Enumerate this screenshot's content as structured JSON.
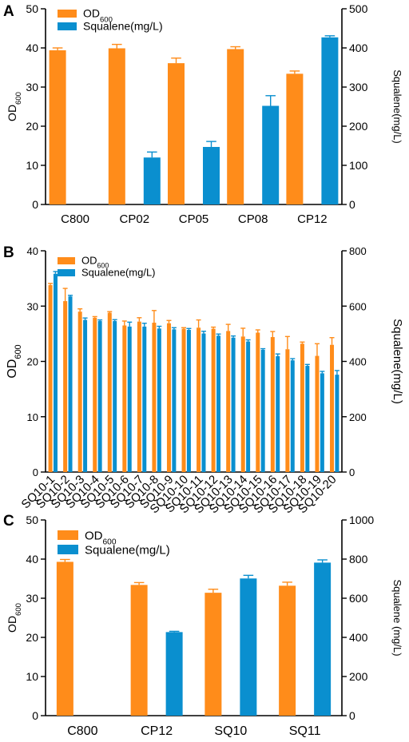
{
  "colors": {
    "od": "#FF8C1A",
    "squalene": "#0A8FCF",
    "axis": "#000000"
  },
  "chart_data": [
    {
      "panel_label": "A",
      "type": "bar",
      "categories": [
        "C800",
        "CP02",
        "CP05",
        "CP08",
        "CP12"
      ],
      "series": [
        {
          "name": "OD",
          "name_sub": "600",
          "axis": "left",
          "values": [
            39.4,
            39.9,
            36.1,
            39.7,
            33.4
          ],
          "errors": [
            0.6,
            1.0,
            1.3,
            0.6,
            0.7
          ]
        },
        {
          "name": "Squalene(mg/L)",
          "axis": "right",
          "values": [
            0,
            120,
            147,
            252,
            427
          ],
          "errors": [
            0,
            14,
            14,
            26,
            4
          ]
        }
      ],
      "ylabel_left": "OD",
      "ylabel_left_sub": "600",
      "ylabel_right": "Squalene(mg/L)",
      "ylim_left": [
        0,
        50
      ],
      "yticks_left": [
        0,
        10,
        20,
        30,
        40,
        50
      ],
      "ylim_right": [
        0,
        500
      ],
      "yticks_right": [
        0,
        100,
        200,
        300,
        400,
        500
      ],
      "rotate_x": false,
      "legend": "top-left"
    },
    {
      "panel_label": "B",
      "type": "bar",
      "categories": [
        "SQ10-1",
        "SQ10-2",
        "SQ10-3",
        "SQ10-4",
        "SQ10-5",
        "SQ10-6",
        "SQ10-7",
        "SQ10-8",
        "SQ10-9",
        "SQ10-10",
        "SQ10-11",
        "SQ10-12",
        "SQ10-13",
        "SQ10-14",
        "SQ10-15",
        "SQ10-16",
        "SQ10-17",
        "SQ10-18",
        "SQ10-19",
        "SQ10-20"
      ],
      "series": [
        {
          "name": "OD",
          "name_sub": "600",
          "axis": "left",
          "values": [
            33.8,
            30.9,
            29.0,
            27.9,
            28.8,
            26.5,
            27.2,
            27.0,
            26.9,
            25.9,
            26.1,
            25.9,
            25.5,
            24.5,
            25.2,
            24.4,
            22.2,
            23.2,
            21.0,
            23.0
          ],
          "errors": [
            0.3,
            2.3,
            0.5,
            0.2,
            0.2,
            0.8,
            0.7,
            2.2,
            0.5,
            0.2,
            1.4,
            0.3,
            1.2,
            1.5,
            0.5,
            1.0,
            2.3,
            0.3,
            2.2,
            1.3
          ]
        },
        {
          "name": "Squalene(mg/L)",
          "axis": "right",
          "values": [
            717,
            635,
            550,
            546,
            546,
            526,
            526,
            519,
            516,
            514,
            501,
            493,
            486,
            472,
            442,
            419,
            404,
            384,
            357,
            352
          ],
          "errors": [
            8,
            4,
            7,
            4,
            5,
            16,
            12,
            8,
            6,
            5,
            8,
            6,
            6,
            6,
            4,
            8,
            6,
            5,
            7,
            15
          ]
        }
      ],
      "ylabel_left": "OD",
      "ylabel_left_sub": "600",
      "ylabel_right": "Squalene(mg/L)",
      "ylim_left": [
        0,
        40
      ],
      "yticks_left": [
        0,
        10,
        20,
        30,
        40
      ],
      "ylim_right": [
        0,
        800
      ],
      "yticks_right": [
        0,
        200,
        400,
        600,
        800
      ],
      "rotate_x": true,
      "legend": "top-left"
    },
    {
      "panel_label": "C",
      "type": "bar",
      "categories": [
        "C800",
        "CP12",
        "SQ10",
        "SQ11"
      ],
      "series": [
        {
          "name": "OD",
          "name_sub": "600",
          "axis": "left",
          "values": [
            39.3,
            33.4,
            31.4,
            33.2
          ],
          "errors": [
            0.6,
            0.6,
            0.9,
            0.9
          ]
        },
        {
          "name": "Squalene(mg/L)",
          "axis": "right",
          "values": [
            0,
            427,
            701,
            782
          ],
          "errors": [
            0,
            4,
            16,
            14
          ]
        }
      ],
      "ylabel_left": "OD",
      "ylabel_left_sub": "600",
      "ylabel_right": "Squalene (mg/L)",
      "ylim_left": [
        0,
        50
      ],
      "yticks_left": [
        0,
        10,
        20,
        30,
        40,
        50
      ],
      "ylim_right": [
        0,
        1000
      ],
      "yticks_right": [
        0,
        200,
        400,
        600,
        800,
        1000
      ],
      "rotate_x": false,
      "legend": "top-left"
    }
  ]
}
